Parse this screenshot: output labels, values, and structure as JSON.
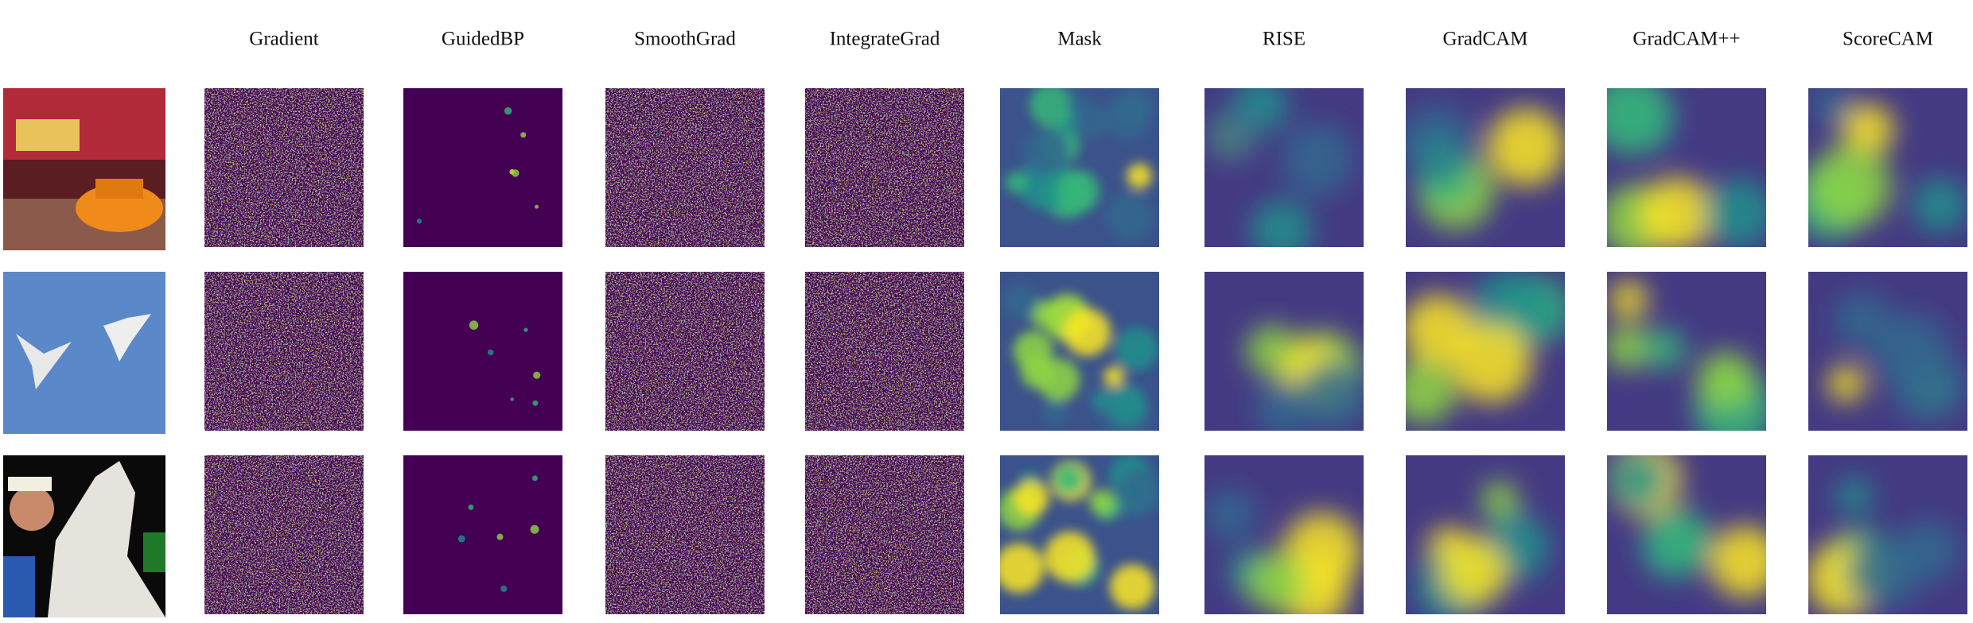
{
  "columns": [
    "Gradient",
    "GuidedBP",
    "SmoothGrad",
    "IntegrateGrad",
    "Mask",
    "RISE",
    "GradCAM",
    "GradCAM++",
    "ScoreCAM"
  ]
}
